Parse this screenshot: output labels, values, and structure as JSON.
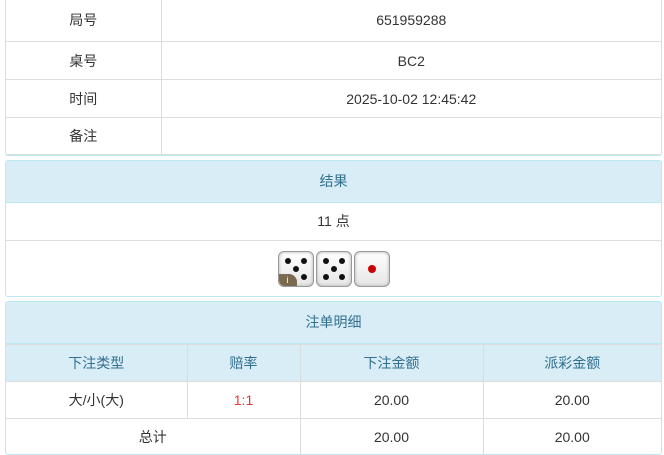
{
  "info": {
    "rows": [
      {
        "label": "局号",
        "value": "651959288"
      },
      {
        "label": "桌号",
        "value": "BC2"
      },
      {
        "label": "时间",
        "value": "2025-10-02 12:45:42"
      },
      {
        "label": "备注",
        "value": ""
      }
    ]
  },
  "result": {
    "title": "结果",
    "points": "11 点",
    "dice": [
      5,
      5,
      1
    ],
    "badge": "i"
  },
  "bets": {
    "title": "注单明细",
    "headers": [
      "下注类型",
      "赔率",
      "下注金额",
      "派彩金额"
    ],
    "rows": [
      {
        "type": "大/小(大)",
        "odds": "1:1",
        "amount": "20.00",
        "payout": "20.00"
      }
    ],
    "total": {
      "label": "总计",
      "amount": "20.00",
      "payout": "20.00"
    }
  },
  "colors": {
    "header_bg": "#d9edf7",
    "header_text": "#31708f",
    "odds": "#e4393c"
  }
}
